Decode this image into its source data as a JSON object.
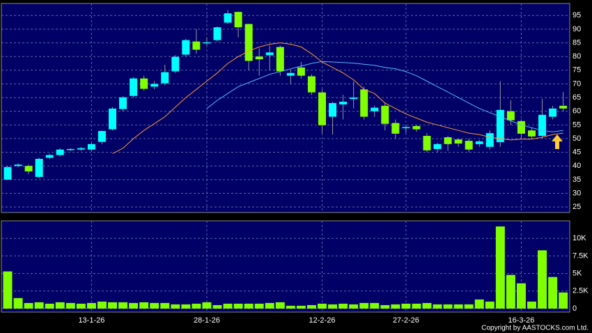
{
  "chart_data": [
    {
      "type": "candlestick",
      "open": [
        35,
        40,
        40,
        36,
        43,
        44,
        45.8,
        46,
        46,
        48.8,
        53.4,
        60.8,
        65.6,
        72,
        69,
        70.2,
        74.6,
        80.7,
        85.5,
        84.8,
        86,
        92.4,
        96.3,
        91.9,
        80,
        80.5,
        83.5,
        73,
        76,
        72.8,
        66.9,
        58,
        62.5,
        64.5,
        68,
        60,
        62,
        55.7,
        53.8,
        54.6,
        51,
        46.2,
        50.5,
        49.7,
        49.2,
        48,
        47,
        48.7,
        60,
        56.4,
        53,
        51,
        58,
        62
      ],
      "high": [
        40,
        41,
        40.5,
        43,
        44.5,
        46.5,
        46.5,
        47,
        48.5,
        53,
        61.5,
        65.5,
        72.5,
        73,
        71,
        77,
        80.5,
        86.5,
        90,
        87,
        91,
        97,
        96.5,
        92,
        83,
        84,
        84,
        75,
        78,
        73.5,
        68,
        63.5,
        66,
        71,
        69,
        62,
        63,
        57,
        55,
        55,
        52,
        48.5,
        51,
        50,
        50,
        49.5,
        53,
        71,
        64,
        57,
        54,
        64.5,
        62,
        67
      ],
      "low": [
        35,
        39.5,
        37,
        35.5,
        42.5,
        43.5,
        45.5,
        45.5,
        45.5,
        48,
        53,
        60,
        65,
        67.5,
        68,
        69.5,
        74,
        80,
        81,
        84,
        85.5,
        92,
        87,
        75,
        73,
        75,
        73,
        70,
        72,
        66,
        52,
        51.5,
        57,
        61,
        57,
        58,
        53,
        50,
        52,
        52.5,
        45,
        45,
        45.5,
        47,
        45,
        47,
        46,
        47,
        55,
        50,
        50,
        50,
        57,
        60
      ],
      "close": [
        39.6,
        40.5,
        38,
        42.6,
        44,
        46,
        46.2,
        46.5,
        48,
        52.8,
        61,
        65.1,
        72,
        68.2,
        70,
        74.3,
        79.9,
        86,
        82.5,
        85.2,
        90.7,
        95.8,
        90.7,
        78.4,
        79,
        81.5,
        74.6,
        74,
        73,
        66.9,
        54.9,
        63,
        63.5,
        65,
        58,
        61.3,
        55.4,
        51.8,
        54.2,
        53.4,
        45.7,
        48,
        48,
        48.2,
        46,
        49,
        52,
        60.5,
        56.7,
        51.8,
        50.8,
        58.7,
        61,
        61
      ],
      "up_color": "#00ffff",
      "down_color": "#80ff00",
      "lines": [
        {
          "color": "#ff9933",
          "values": [
            null,
            null,
            null,
            null,
            null,
            null,
            null,
            null,
            null,
            null,
            44.5,
            46.5,
            50,
            53,
            55.5,
            58,
            61.5,
            65,
            68,
            71,
            74,
            77.5,
            80,
            82,
            83.5,
            84.5,
            85,
            84.5,
            83.5,
            81,
            78,
            76,
            74,
            71.5,
            68,
            66.5,
            63,
            61,
            59,
            57.5,
            56,
            55,
            54,
            53,
            52,
            51.5,
            50.5,
            50,
            49.5,
            49.8,
            49.8,
            50.5,
            51.5,
            52
          ]
        },
        {
          "color": "#55bbff",
          "values": [
            null,
            null,
            null,
            null,
            null,
            null,
            null,
            null,
            null,
            null,
            null,
            null,
            null,
            null,
            null,
            null,
            null,
            null,
            null,
            61,
            64,
            66.5,
            69,
            70.5,
            72,
            73.5,
            74.5,
            75.5,
            76.5,
            77.5,
            78.2,
            78,
            77.8,
            77.6,
            77.2,
            76.8,
            76,
            75.5,
            74.5,
            73,
            71,
            69,
            67,
            65,
            63,
            61,
            59.5,
            58,
            56.5,
            55,
            54,
            53,
            52.5,
            53
          ]
        }
      ],
      "ylim": [
        23,
        99.4
      ],
      "yticks": [
        25,
        30,
        35,
        40,
        45,
        50,
        55,
        60,
        65,
        70,
        75,
        80,
        85,
        90,
        95
      ],
      "grid": true
    },
    {
      "type": "bar",
      "categories": [
        null,
        null,
        null,
        null,
        null,
        null,
        null,
        null,
        "13-1-26",
        null,
        null,
        null,
        null,
        null,
        null,
        null,
        null,
        null,
        null,
        "28-1-26",
        null,
        null,
        null,
        null,
        null,
        null,
        null,
        null,
        null,
        null,
        "12-2-26",
        null,
        null,
        null,
        null,
        null,
        null,
        null,
        "27-2-26",
        null,
        null,
        null,
        null,
        null,
        null,
        null,
        null,
        null,
        null,
        "16-3-26",
        null,
        null,
        null,
        null
      ],
      "values": [
        5300,
        1500,
        800,
        900,
        700,
        900,
        800,
        700,
        800,
        1000,
        900,
        900,
        800,
        900,
        800,
        800,
        600,
        600,
        700,
        900,
        500,
        700,
        700,
        700,
        700,
        800,
        900,
        400,
        400,
        500,
        700,
        600,
        700,
        600,
        800,
        800,
        500,
        600,
        700,
        700,
        800,
        600,
        600,
        600,
        600,
        1300,
        1000,
        11700,
        4800,
        3600,
        1000,
        8300,
        4500,
        2300
      ],
      "color": "#80ff00",
      "ylim": [
        -500,
        12500
      ],
      "yticks": [
        0,
        {
          "value": 2500,
          "label": "2.5K"
        },
        {
          "value": 5000,
          "label": "5K"
        },
        {
          "value": 7500,
          "label": "7.5K"
        },
        {
          "value": 10000,
          "label": "10K"
        }
      ],
      "grid": true,
      "source": "Copyright by AASTOCKS.com Ltd."
    }
  ]
}
